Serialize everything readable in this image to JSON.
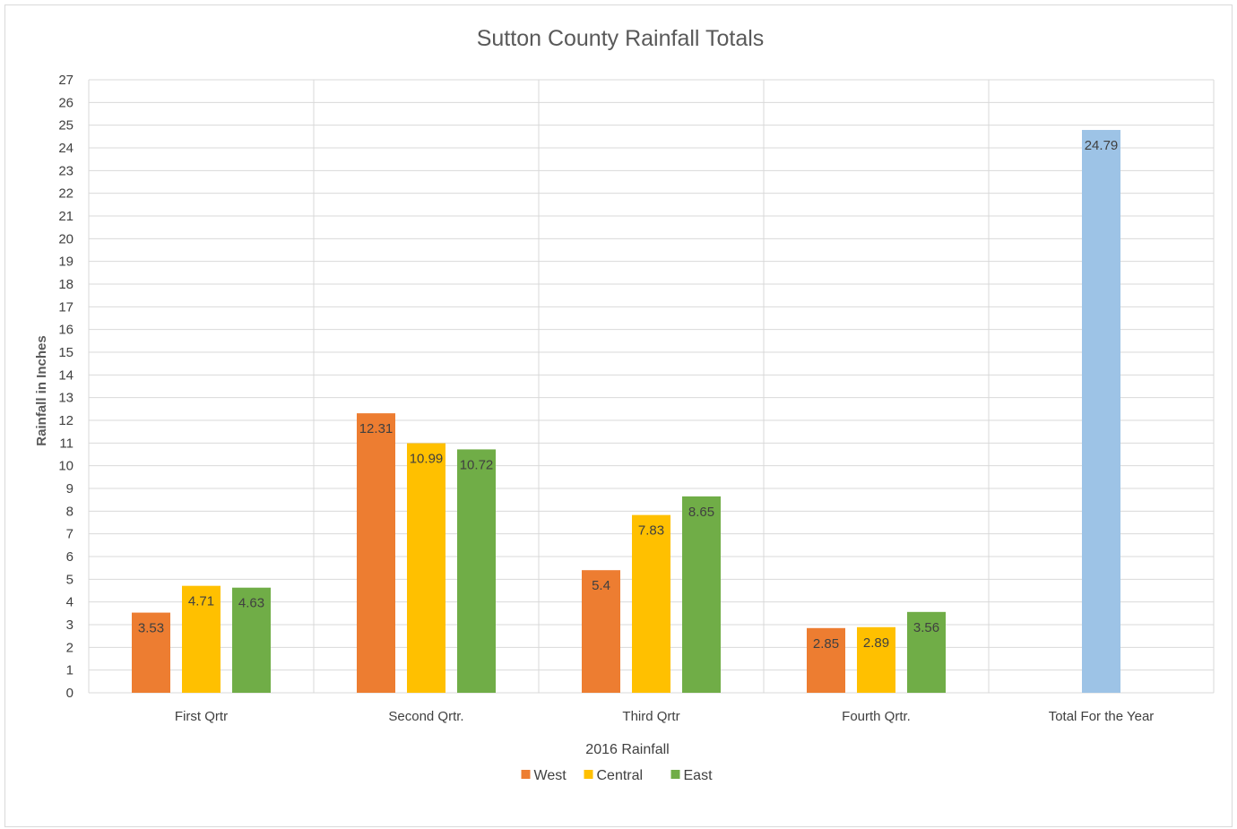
{
  "chart_data": {
    "type": "bar",
    "title": "Sutton County Rainfall Totals",
    "xlabel": "2016 Rainfall",
    "ylabel": "Rainfall in Inches",
    "ylim": [
      0,
      27
    ],
    "ytick_step": 1,
    "grid": true,
    "legend_position": "bottom",
    "categories": [
      "First Qrtr",
      "Second Qrtr.",
      "Third Qrtr",
      "Fourth Qrtr.",
      "Total For the Year"
    ],
    "series": [
      {
        "name": "West",
        "color": "#ED7D31",
        "values": [
          3.53,
          12.31,
          5.4,
          2.85,
          null
        ]
      },
      {
        "name": "Central",
        "color": "#FFC000",
        "values": [
          4.71,
          10.99,
          7.83,
          2.89,
          null
        ]
      },
      {
        "name": "East",
        "color": "#70AD47",
        "values": [
          4.63,
          10.72,
          8.65,
          3.56,
          null
        ]
      },
      {
        "name": "",
        "color": "#9DC3E6",
        "values": [
          null,
          null,
          null,
          null,
          24.79
        ],
        "in_legend": false
      }
    ]
  }
}
